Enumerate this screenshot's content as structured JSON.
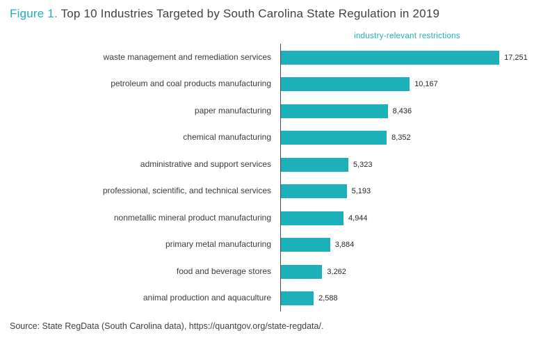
{
  "figure": {
    "label": "Figure 1.",
    "title": " Top 10 Industries Targeted by South Carolina State Regulation in 2019"
  },
  "chart_data": {
    "type": "bar",
    "orientation": "horizontal",
    "axis_label": "industry-relevant restrictions",
    "categories": [
      "waste management and remediation services",
      "petroleum and coal products manufacturing",
      "paper manufacturing",
      "chemical manufacturing",
      "administrative and support services",
      "professional, scientific, and technical services",
      "nonmetallic mineral product manufacturing",
      "primary metal manufacturing",
      "food and beverage stores",
      "animal production and aquaculture"
    ],
    "values": [
      17251,
      10167,
      8436,
      8352,
      5323,
      5193,
      4944,
      3884,
      3262,
      2588
    ],
    "value_labels": [
      "17,251",
      "10,167",
      "8,436",
      "8,352",
      "5,323",
      "5,193",
      "4,944",
      "3,884",
      "3,262",
      "2,588"
    ],
    "xlim": [
      0,
      18800
    ],
    "grid": false,
    "legend_position": "top-center"
  },
  "source": "Source: State RegData (South Carolina data), https://quantgov.org/state-regdata/.",
  "colors": {
    "bar": "#1cb0b8",
    "accent": "#1cb0b8",
    "title_text": "#404042",
    "axis_line": "#4a4a4e"
  }
}
